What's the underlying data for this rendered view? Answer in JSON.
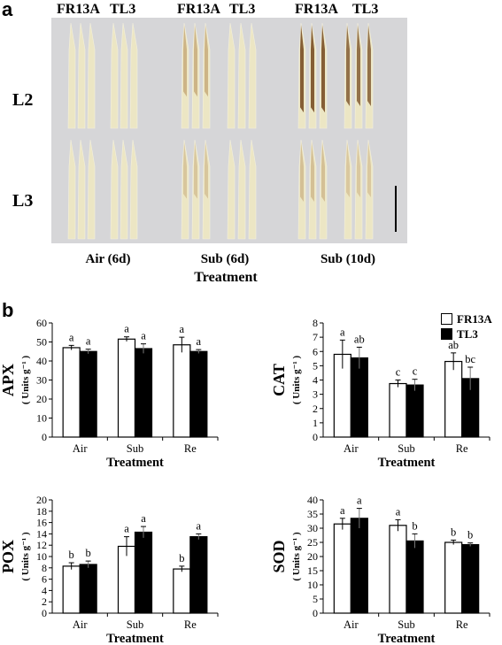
{
  "panel_a": {
    "letter": "a",
    "headers": [
      "FR13A",
      "TL3",
      "FR13A",
      "TL3",
      "FR13A",
      "TL3"
    ],
    "rows": [
      "L2",
      "L3"
    ],
    "columns": [
      "Air (6d)",
      "Sub (6d)",
      "Sub (10d)"
    ],
    "xlabel": "Treatment",
    "photo_description_colors": {
      "background": "#d6d6d8",
      "leaf": "#ece6c4",
      "stain_light": "#b9925e",
      "stain_dark": "#7a4f26"
    }
  },
  "panel_b": {
    "letter": "b",
    "legend": [
      "FR13A",
      "TL3"
    ],
    "series_colors": {
      "FR13A": "#ffffff",
      "TL3": "#000000"
    }
  },
  "chart_data": [
    {
      "type": "bar",
      "title": "",
      "ylabel": "APX",
      "yunit": "( Units g⁻¹ )",
      "xlabel": "Treatment",
      "categories": [
        "Air",
        "Sub",
        "Re"
      ],
      "ylim": [
        0,
        60
      ],
      "yticks": [
        0,
        10,
        20,
        30,
        40,
        50,
        60
      ],
      "series": [
        {
          "name": "FR13A",
          "values": [
            47,
            51.5,
            48.5
          ],
          "errors": [
            1.2,
            1.2,
            4
          ],
          "labels": [
            "a",
            "a",
            "a"
          ]
        },
        {
          "name": "TL3",
          "values": [
            45,
            46.5,
            45
          ],
          "errors": [
            1.2,
            2.5,
            1.0
          ],
          "labels": [
            "a",
            "a",
            "a"
          ]
        }
      ]
    },
    {
      "type": "bar",
      "title": "",
      "ylabel": "CAT",
      "yunit": "( Units g⁻¹ )",
      "xlabel": "Treatment",
      "categories": [
        "Air",
        "Sub",
        "Re"
      ],
      "ylim": [
        0,
        8
      ],
      "yticks": [
        0,
        1,
        2,
        3,
        4,
        5,
        6,
        7,
        8
      ],
      "series": [
        {
          "name": "FR13A",
          "values": [
            5.8,
            3.75,
            5.3
          ],
          "errors": [
            1.0,
            0.25,
            0.6
          ],
          "labels": [
            "a",
            "c",
            "ab"
          ]
        },
        {
          "name": "TL3",
          "values": [
            5.55,
            3.65,
            4.1
          ],
          "errors": [
            0.75,
            0.4,
            0.8
          ],
          "labels": [
            "ab",
            "c",
            "bc"
          ]
        }
      ]
    },
    {
      "type": "bar",
      "title": "",
      "ylabel": "POX",
      "yunit": "( Units g⁻¹ )",
      "xlabel": "Treatment",
      "categories": [
        "Air",
        "Sub",
        "Re"
      ],
      "ylim": [
        0,
        20
      ],
      "yticks": [
        0,
        2,
        4,
        6,
        8,
        10,
        12,
        14,
        16,
        18,
        20
      ],
      "series": [
        {
          "name": "FR13A",
          "values": [
            8.3,
            11.8,
            7.8
          ],
          "errors": [
            0.6,
            1.7,
            0.5
          ],
          "labels": [
            "b",
            "a",
            "b"
          ]
        },
        {
          "name": "TL3",
          "values": [
            8.6,
            14.3,
            13.5
          ],
          "errors": [
            0.6,
            1.0,
            0.5
          ],
          "labels": [
            "b",
            "a",
            "a"
          ]
        }
      ]
    },
    {
      "type": "bar",
      "title": "",
      "ylabel": "SOD",
      "yunit": "( Units g⁻¹ )",
      "xlabel": "Treatment",
      "categories": [
        "Air",
        "Sub",
        "Re"
      ],
      "ylim": [
        0,
        40
      ],
      "yticks": [
        0,
        5,
        10,
        15,
        20,
        25,
        30,
        35,
        40
      ],
      "series": [
        {
          "name": "FR13A",
          "values": [
            31.5,
            31,
            25
          ],
          "errors": [
            2,
            2,
            0.8
          ],
          "labels": [
            "a",
            "a",
            "b"
          ]
        },
        {
          "name": "TL3",
          "values": [
            33.5,
            25.5,
            24.2
          ],
          "errors": [
            3.5,
            2.5,
            0.6
          ],
          "labels": [
            "a",
            "b",
            "b"
          ]
        }
      ]
    }
  ]
}
